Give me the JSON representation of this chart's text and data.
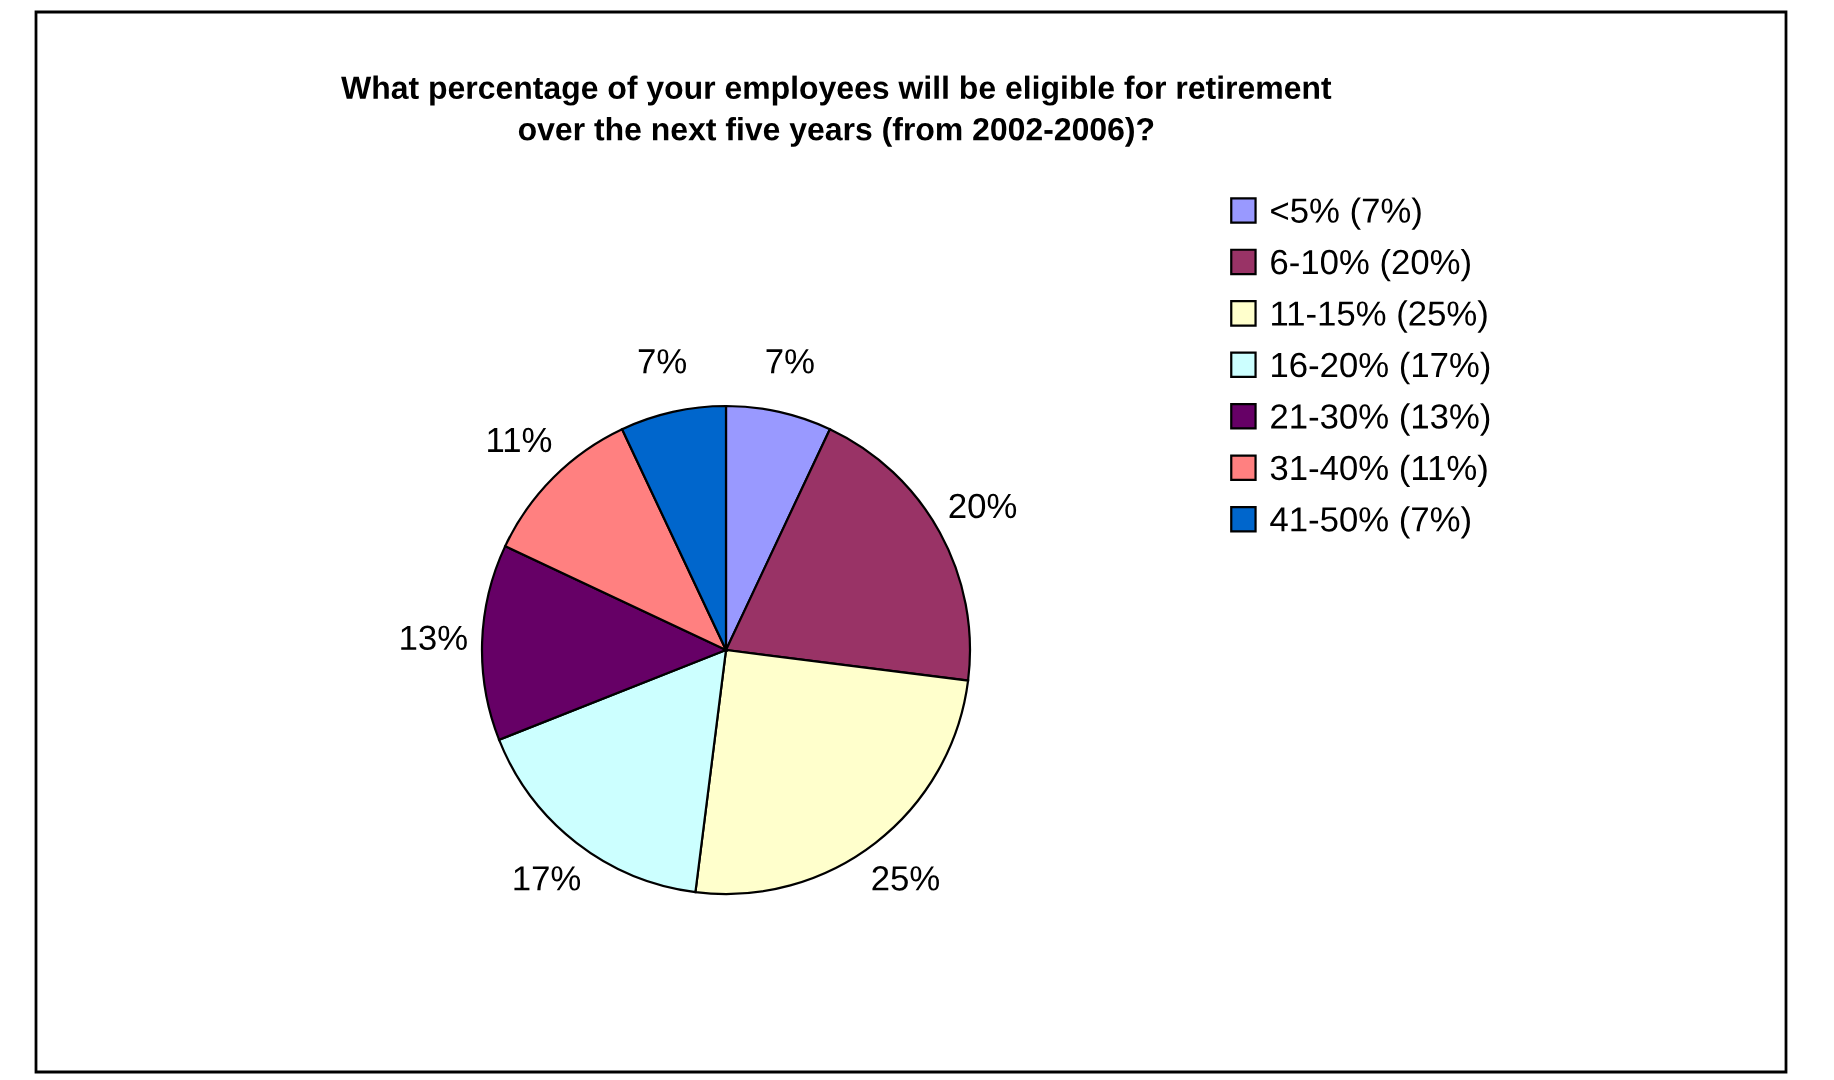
{
  "chart_data": {
    "type": "pie",
    "title": "What percentage of your employees will be eligible for retirement\nover the next five years (from 2002-2006)?",
    "categories": [
      "<5% (7%)",
      "6-10% (20%)",
      "11-15% (25%)",
      "16-20% (17%)",
      "21-30% (13%)",
      "31-40% (11%)",
      "41-50% (7%)"
    ],
    "values": [
      7,
      20,
      25,
      17,
      13,
      11,
      7
    ],
    "value_labels": [
      "7%",
      "20%",
      "25%",
      "17%",
      "13%",
      "11%",
      "7%"
    ],
    "colors": [
      "#9999ff",
      "#993366",
      "#ffffcc",
      "#ccffff",
      "#660066",
      "#ff8080",
      "#0066cc"
    ],
    "legend": "right"
  }
}
